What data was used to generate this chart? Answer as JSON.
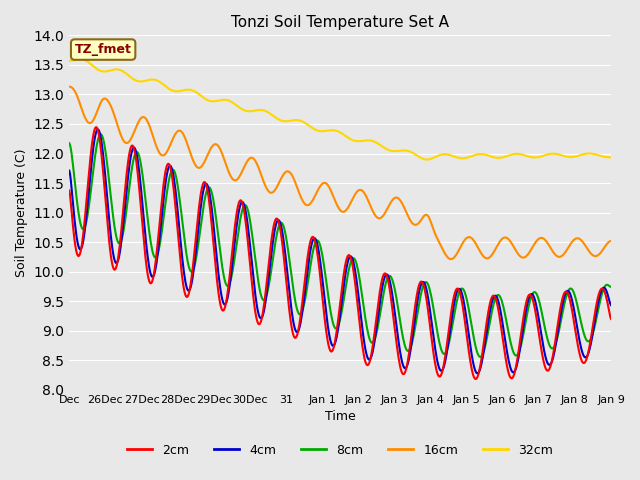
{
  "title": "Tonzi Soil Temperature Set A",
  "xlabel": "Time",
  "ylabel": "Soil Temperature (C)",
  "ylim": [
    8.0,
    14.0
  ],
  "yticks": [
    8.0,
    8.5,
    9.0,
    9.5,
    10.0,
    10.5,
    11.0,
    11.5,
    12.0,
    12.5,
    13.0,
    13.5,
    14.0
  ],
  "xtick_labels": [
    "Dec",
    "26Dec",
    "27Dec",
    "28Dec",
    "29Dec",
    "30Dec",
    "31",
    "Jan 1",
    "Jan 2",
    "Jan 3",
    "Jan 4",
    "Jan 5",
    "Jan 6",
    "Jan 7",
    "Jan 8",
    "Jan 9"
  ],
  "annotation_text": "TZ_fmet",
  "annotation_color": "#8B0000",
  "annotation_bg": "#FFFFC0",
  "annotation_border": "#8B6914",
  "bg_color": "#E8E8E8",
  "plot_bg": "#E8E8E8",
  "line_colors": {
    "2cm": "#FF0000",
    "4cm": "#0000CD",
    "8cm": "#00AA00",
    "16cm": "#FF8C00",
    "32cm": "#FFD700"
  },
  "line_widths": {
    "2cm": 1.5,
    "4cm": 1.5,
    "8cm": 1.5,
    "16cm": 1.5,
    "32cm": 1.5
  },
  "legend_entries": [
    "2cm",
    "4cm",
    "8cm",
    "16cm",
    "32cm"
  ]
}
